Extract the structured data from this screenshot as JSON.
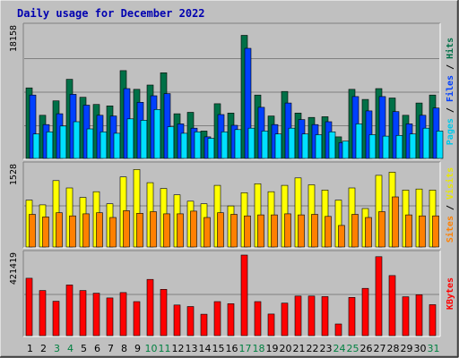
{
  "chart_data": {
    "type": "bar",
    "title": "Daily usage for December 2022",
    "categories": [
      "1",
      "2",
      "3",
      "4",
      "5",
      "6",
      "7",
      "8",
      "9",
      "10",
      "11",
      "12",
      "13",
      "14",
      "15",
      "16",
      "17",
      "18",
      "19",
      "20",
      "21",
      "22",
      "23",
      "24",
      "25",
      "26",
      "27",
      "28",
      "29",
      "30",
      "31"
    ],
    "weekend_days": [
      3,
      4,
      10,
      11,
      17,
      18,
      24,
      25,
      31
    ],
    "panels": [
      {
        "name": "hits-files-pages",
        "ymax_label": "18158",
        "ymax": 18158,
        "series": [
          {
            "name": "Hits",
            "color": "#007047",
            "values": [
              9800,
              6000,
              8000,
              11000,
              8500,
              7500,
              7300,
              12200,
              9600,
              10200,
              11900,
              6200,
              6400,
              3800,
              7600,
              6300,
              17100,
              8800,
              5900,
              9300,
              6300,
              5700,
              5800,
              3000,
              9600,
              8200,
              9700,
              8400,
              6000,
              7700,
              8800
            ]
          },
          {
            "name": "Files",
            "color": "#0040ff",
            "values": [
              8800,
              4700,
              6200,
              8900,
              7400,
              6000,
              5900,
              9700,
              7800,
              8700,
              9000,
              4800,
              4200,
              3000,
              6100,
              4600,
              15300,
              7100,
              4700,
              7700,
              5400,
              4700,
              5100,
              2200,
              8600,
              6600,
              8600,
              6500,
              4800,
              6000,
              7000
            ]
          },
          {
            "name": "Pages",
            "color": "#00e0ff",
            "values": [
              3400,
              3700,
              4500,
              5100,
              4100,
              3700,
              3500,
              5500,
              5300,
              6800,
              4400,
              3500,
              3700,
              2800,
              3700,
              4000,
              4200,
              3800,
              3400,
              4200,
              3400,
              3300,
              3700,
              2400,
              4800,
              3300,
              3100,
              3200,
              3400,
              4200,
              3800
            ]
          }
        ],
        "side_label": [
          "Pages",
          "Files",
          "Hits"
        ]
      },
      {
        "name": "visits-sites",
        "ymax_label": "1528",
        "ymax": 1528,
        "series": [
          {
            "name": "Visits",
            "color": "#ffff00",
            "values": [
              890,
              800,
              1260,
              1120,
              940,
              1050,
              820,
              1330,
              1470,
              1220,
              1110,
              990,
              870,
              820,
              1170,
              780,
              1030,
              1200,
              1050,
              1170,
              1310,
              1180,
              1080,
              890,
              1120,
              730,
              1360,
              1420,
              1080,
              1100,
              1080
            ]
          },
          {
            "name": "Sites",
            "color": "#ff8000",
            "values": [
              620,
              570,
              650,
              590,
              630,
              650,
              560,
              690,
              640,
              670,
              630,
              630,
              680,
              560,
              650,
              620,
              590,
              610,
              610,
              630,
              610,
              620,
              580,
              410,
              620,
              560,
              670,
              950,
              610,
              590,
              590
            ]
          }
        ],
        "side_label": [
          "Sites",
          "Visits"
        ]
      },
      {
        "name": "kbytes",
        "ymax_label": "421419",
        "ymax": 421419,
        "series": [
          {
            "name": "KBytes",
            "color": "#ff0000",
            "values": [
              300000,
              236000,
              180000,
              265000,
              236000,
              222000,
              197000,
              225000,
              178000,
              294000,
              242000,
              160000,
              152000,
              112000,
              178000,
              167000,
              421419,
              178000,
              113000,
              170000,
              207000,
              207000,
              204000,
              61000,
              200000,
              247000,
              413000,
              314000,
              203000,
              214000,
              162000
            ]
          }
        ],
        "side_label": [
          "KBytes"
        ]
      }
    ]
  }
}
